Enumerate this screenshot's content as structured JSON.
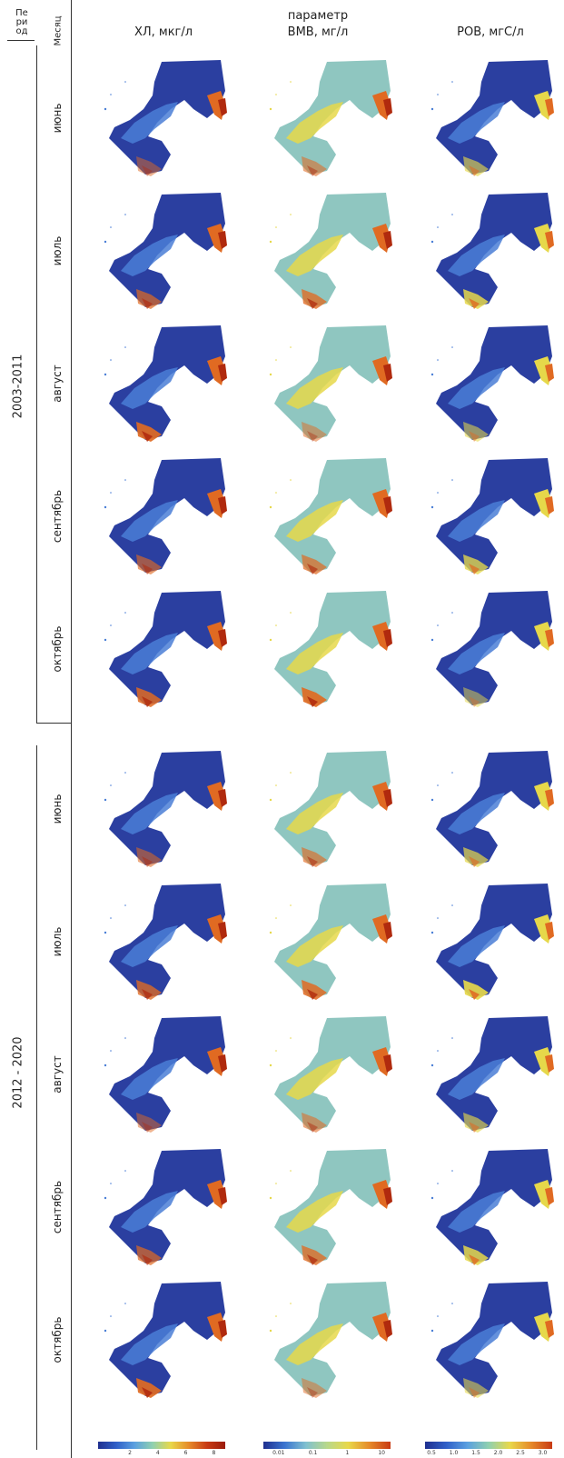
{
  "header": {
    "period_label": "Пе\nри\nод",
    "month_label": "Месяц",
    "parameter_label": "параметр",
    "columns": [
      "ХЛ, мкг/л",
      "ВМВ, мг/л",
      "РОВ, мгС/л"
    ]
  },
  "periods": [
    {
      "label": "2003-2011",
      "months": [
        "июнь",
        "июль",
        "август",
        "сентябрь",
        "октябрь"
      ]
    },
    {
      "label": "2012 - 2020",
      "months": [
        "июнь",
        "июль",
        "август",
        "сентябрь",
        "октябрь"
      ]
    }
  ],
  "colorbars": [
    {
      "ticks": [
        "2",
        "4",
        "6",
        "8"
      ]
    },
    {
      "ticks": [
        "0.01",
        "0.1",
        "1",
        "10"
      ]
    },
    {
      "ticks": [
        "0.5",
        "1.0",
        "1.5",
        "2.0",
        "2.5",
        "3.0"
      ]
    }
  ],
  "colors": {
    "low": "#2b3fa0",
    "mid_low": "#4a7ed6",
    "mid": "#8fc6c0",
    "mid_high": "#e6d84a",
    "high": "#e06a22",
    "max": "#b02a0e"
  }
}
